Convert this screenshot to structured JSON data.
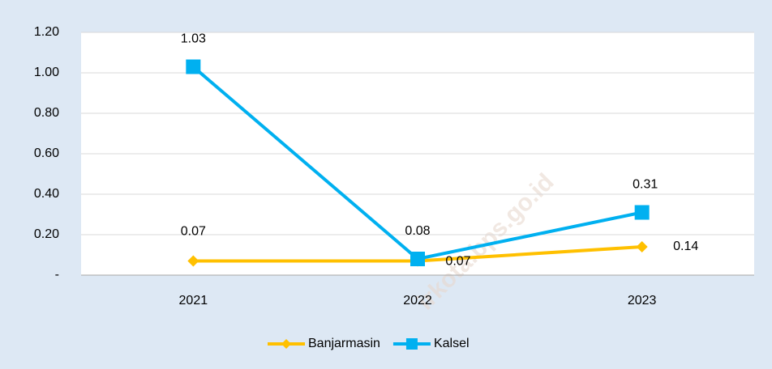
{
  "chart_data": {
    "type": "line",
    "categories": [
      "2021",
      "2022",
      "2023"
    ],
    "series": [
      {
        "name": "Banjarmasin",
        "color": "#ffc000",
        "marker": "diamond",
        "values": [
          0.07,
          0.07,
          0.14
        ]
      },
      {
        "name": "Kalsel",
        "color": "#00b0f0",
        "marker": "square",
        "values": [
          1.03,
          0.08,
          0.31
        ]
      }
    ],
    "ylim": [
      0,
      1.2
    ],
    "yticks": [
      {
        "value": 0,
        "label": "-"
      },
      {
        "value": 0.2,
        "label": "0.20"
      },
      {
        "value": 0.4,
        "label": "0.40"
      },
      {
        "value": 0.6,
        "label": "0.60"
      },
      {
        "value": 0.8,
        "label": "0.80"
      },
      {
        "value": 1.0,
        "label": "1.00"
      },
      {
        "value": 1.2,
        "label": "1.20"
      }
    ],
    "grid": true,
    "legend": "bottom",
    "watermark": "irkota.bps.go.id"
  }
}
